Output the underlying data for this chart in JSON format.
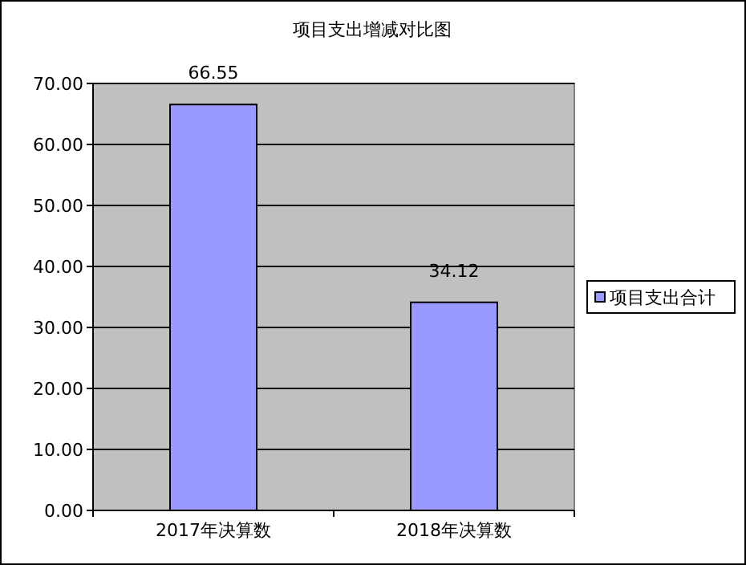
{
  "chart_data": {
    "type": "bar",
    "title": "项目支出增减对比图",
    "categories": [
      "2017年决算数",
      "2018年决算数"
    ],
    "series": [
      {
        "name": "项目支出合计",
        "color": "#9999ff",
        "values": [
          66.55,
          34.12
        ]
      }
    ],
    "ylim": [
      0,
      70
    ],
    "yticks": [
      {
        "value": 0,
        "label": "0.00"
      },
      {
        "value": 10,
        "label": "10.00"
      },
      {
        "value": 20,
        "label": "20.00"
      },
      {
        "value": 30,
        "label": "30.00"
      },
      {
        "value": 40,
        "label": "40.00"
      },
      {
        "value": 50,
        "label": "50.00"
      },
      {
        "value": 60,
        "label": "60.00"
      },
      {
        "value": 70,
        "label": "70.00"
      }
    ],
    "grid": "y",
    "legend": "right",
    "data_labels": true
  }
}
